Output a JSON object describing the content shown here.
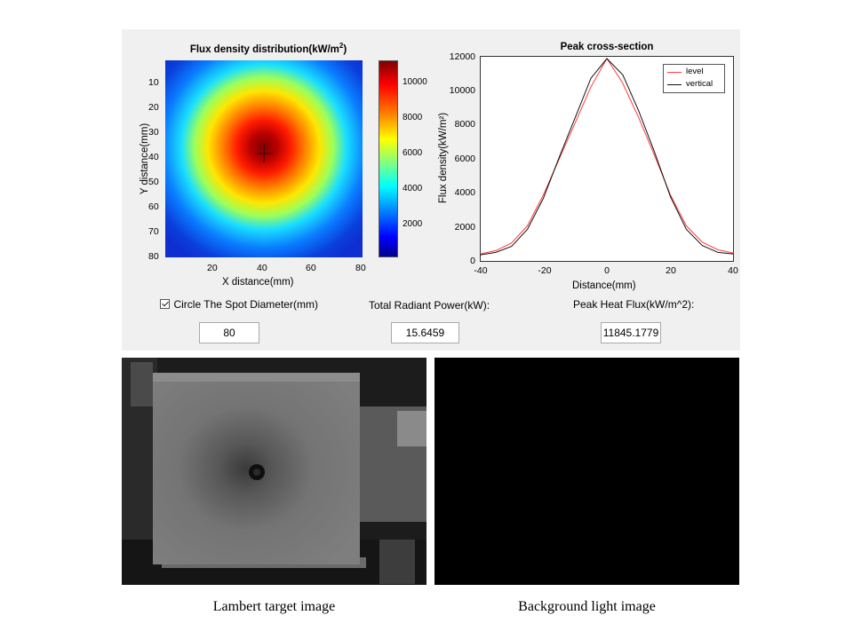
{
  "heatmap": {
    "title_main": "Flux density distribution(kW/m",
    "title_sup": "2",
    "title_end": ")",
    "xlabel": "X distance(mm)",
    "ylabel": "Y distance(mm)",
    "xticks": [
      "20",
      "40",
      "60",
      "80"
    ],
    "yticks": [
      "10",
      "20",
      "30",
      "40",
      "50",
      "60",
      "70",
      "80"
    ],
    "colorbar_ticks": [
      "10000",
      "8000",
      "6000",
      "4000",
      "2000"
    ]
  },
  "profile": {
    "title": "Peak cross-section",
    "xlabel": "Distance(mm)",
    "ylabel": "Flux density(kW/m²)",
    "xticks": [
      "-40",
      "-20",
      "0",
      "20",
      "40"
    ],
    "yticks": [
      "12000",
      "10000",
      "8000",
      "6000",
      "4000",
      "2000",
      "0"
    ],
    "legend": {
      "level": "level",
      "vertical": "vertical"
    }
  },
  "controls": {
    "circle_label": "Circle The Spot Diameter(mm)",
    "circle_checked": true,
    "circle_value": "80",
    "power_label": "Total Radiant Power(kW):",
    "power_value": "15.6459",
    "peak_label": "Peak Heat Flux(kW/m^2):",
    "peak_value": "11845.1779"
  },
  "captions": {
    "left": "Lambert target image",
    "right": "Background light image"
  },
  "chart_data": [
    {
      "type": "heatmap",
      "title": "Flux density distribution(kW/m2)",
      "xlabel": "X distance(mm)",
      "ylabel": "Y distance(mm)",
      "xlim": [
        0,
        80
      ],
      "ylim": [
        0,
        80
      ],
      "colormap": "jet",
      "color_range": [
        0,
        11845
      ],
      "peak_center": [
        40,
        40
      ],
      "peak_value": 11845.1779
    },
    {
      "type": "line",
      "title": "Peak cross-section",
      "xlabel": "Distance(mm)",
      "ylabel": "Flux density(kW/m2)",
      "xlim": [
        -40,
        40
      ],
      "ylim": [
        0,
        12000
      ],
      "legend_position": "top-right",
      "series": [
        {
          "name": "level",
          "color": "#ff3b3b",
          "x": [
            -40,
            -35,
            -30,
            -25,
            -20,
            -15,
            -10,
            -5,
            0,
            5,
            10,
            15,
            20,
            25,
            30,
            35,
            40
          ],
          "y": [
            450,
            650,
            1100,
            2100,
            3900,
            6000,
            8100,
            10200,
            11845,
            10400,
            8400,
            6200,
            3900,
            2100,
            1150,
            700,
            500
          ]
        },
        {
          "name": "vertical",
          "color": "#111111",
          "x": [
            -40,
            -35,
            -30,
            -25,
            -20,
            -15,
            -10,
            -5,
            0,
            5,
            10,
            15,
            20,
            25,
            30,
            35,
            40
          ],
          "y": [
            400,
            550,
            900,
            1900,
            3700,
            6100,
            8400,
            10700,
            11845,
            10900,
            8800,
            6400,
            3800,
            1900,
            950,
            550,
            450
          ]
        }
      ]
    }
  ]
}
